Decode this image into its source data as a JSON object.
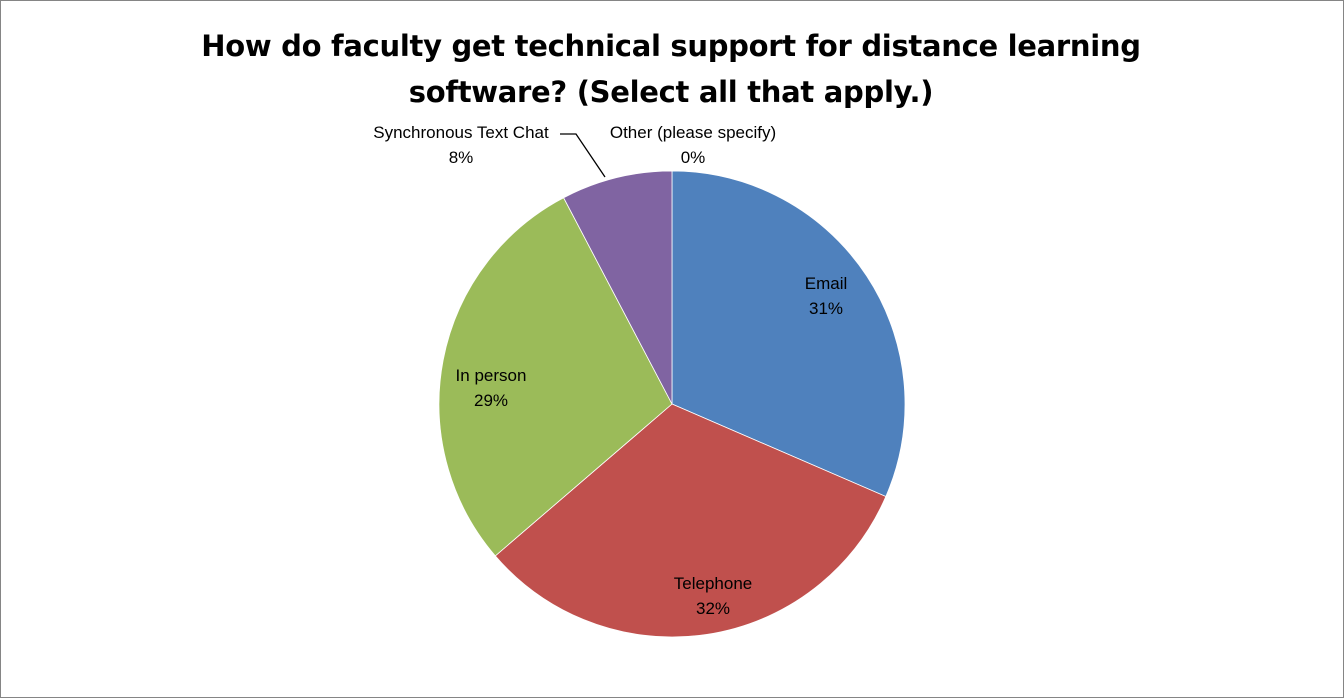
{
  "chart_data": {
    "type": "pie",
    "title_lines": [
      "How do faculty get technical support for distance learning",
      "software? (Select all that apply.)"
    ],
    "slices": [
      {
        "name": "Email",
        "percent_label": "31%",
        "value": 31.5,
        "color": "#4F81BD"
      },
      {
        "name": "Telephone",
        "percent_label": "32%",
        "value": 32.2,
        "color": "#C0504D"
      },
      {
        "name": "In person",
        "percent_label": "29%",
        "value": 28.6,
        "color": "#9BBB59"
      },
      {
        "name": "Synchronous Text Chat",
        "percent_label": "8%",
        "value": 7.7,
        "color": "#8064A2"
      },
      {
        "name": "Other (please specify)",
        "percent_label": "0%",
        "value": 0.0,
        "color": "#4BACC6"
      }
    ],
    "start_angle_deg": 0,
    "direction": "clockwise",
    "legend": "none"
  }
}
